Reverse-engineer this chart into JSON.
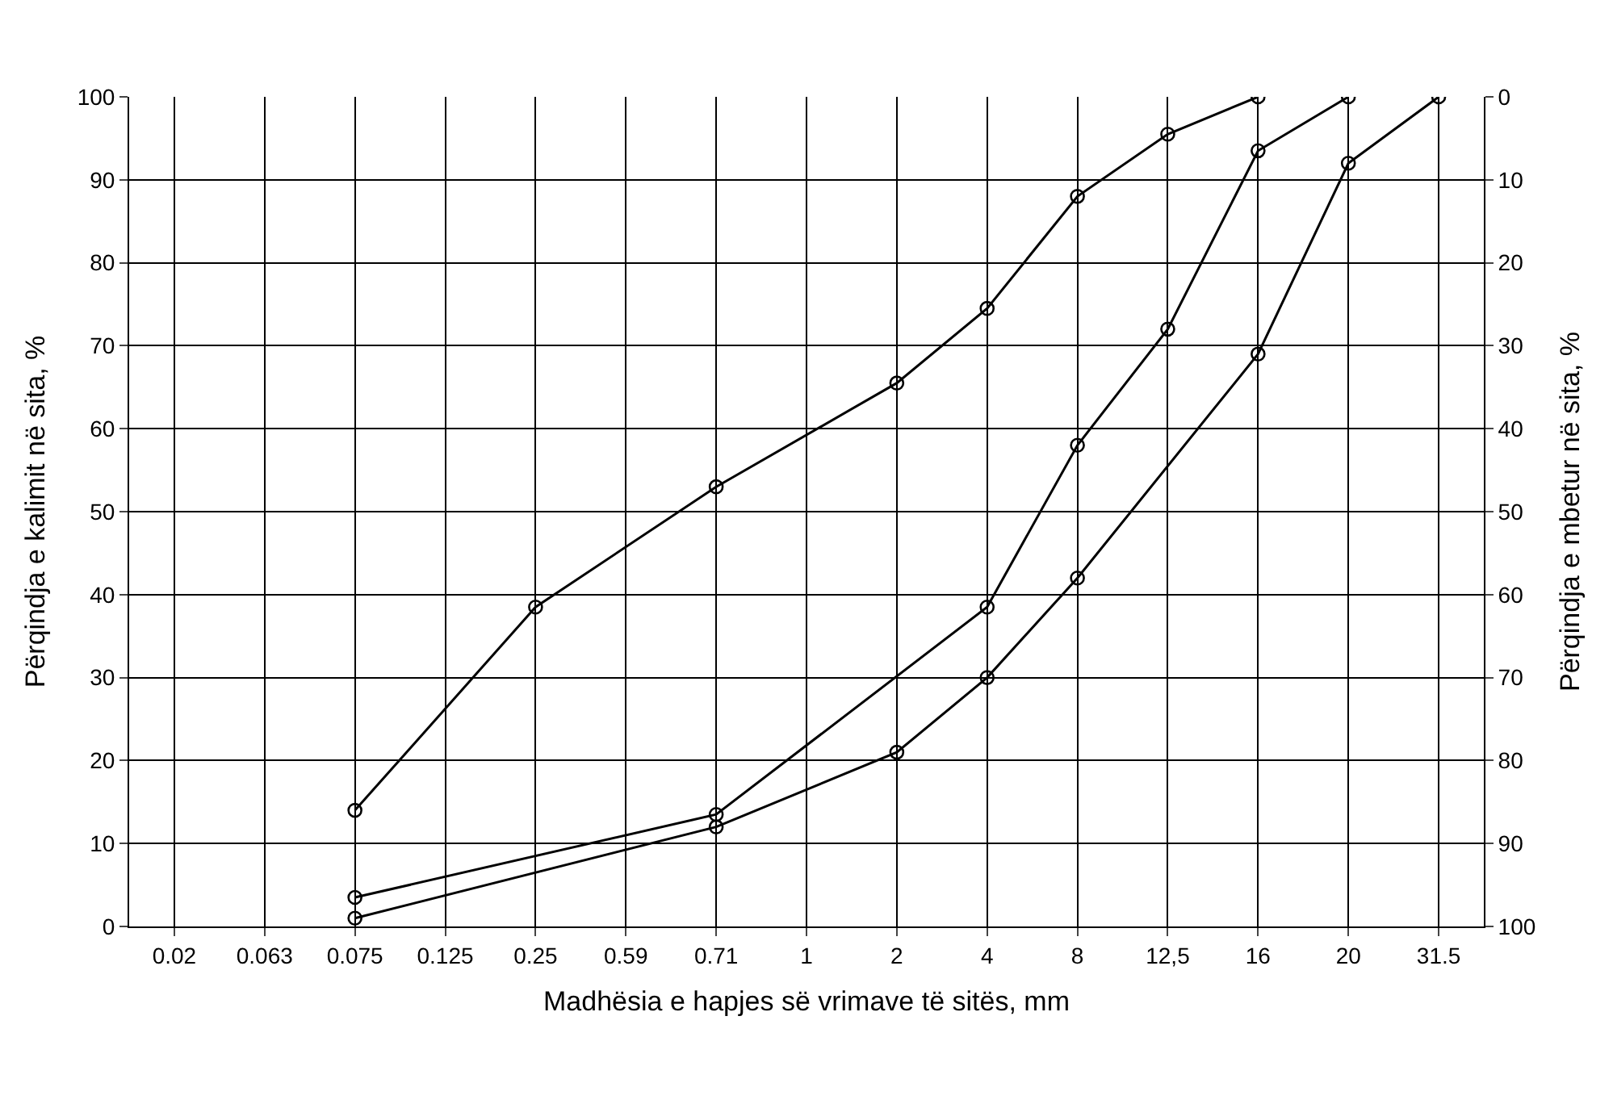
{
  "chart_data": {
    "type": "line",
    "xlabel": "Madhësia e hapjes së vrimave të sitës, mm",
    "ylabel": "Përqindja e kalimit në sita, %",
    "y2label": "Përqindja e mbetur në sita, %",
    "categories": [
      "0.02",
      "0.063",
      "0.075",
      "0.125",
      "0.25",
      "0.59",
      "0.71",
      "1",
      "2",
      "4",
      "8",
      "12,5",
      "16",
      "20",
      "31.5"
    ],
    "series": [
      {
        "color": "#000000",
        "x": [
          "0.075",
          "0.25",
          "0.71",
          "2",
          "4",
          "8",
          "12,5",
          "16"
        ],
        "values": [
          14,
          38.5,
          53,
          65.5,
          74.5,
          88,
          95.5,
          100
        ]
      },
      {
        "color": "#000000",
        "x": [
          "0.075",
          "0.71",
          "4",
          "8",
          "12,5",
          "16",
          "20"
        ],
        "values": [
          3.5,
          13.5,
          38.5,
          58,
          72,
          93.5,
          100
        ]
      },
      {
        "color": "#000000",
        "x": [
          "0.075",
          "0.71",
          "2",
          "4",
          "8",
          "16",
          "20",
          "31.5"
        ],
        "values": [
          1,
          12,
          21,
          30,
          42,
          69,
          92,
          100
        ]
      }
    ],
    "ylim": [
      0,
      100
    ],
    "yticks": [
      0,
      10,
      20,
      30,
      40,
      50,
      60,
      70,
      80,
      90,
      100
    ],
    "y2lim": [
      100,
      0
    ],
    "y2ticks": [
      0,
      10,
      20,
      30,
      40,
      50,
      60,
      70,
      80,
      90,
      100
    ],
    "grid": true,
    "marker": "circle",
    "line_style": "solid"
  }
}
